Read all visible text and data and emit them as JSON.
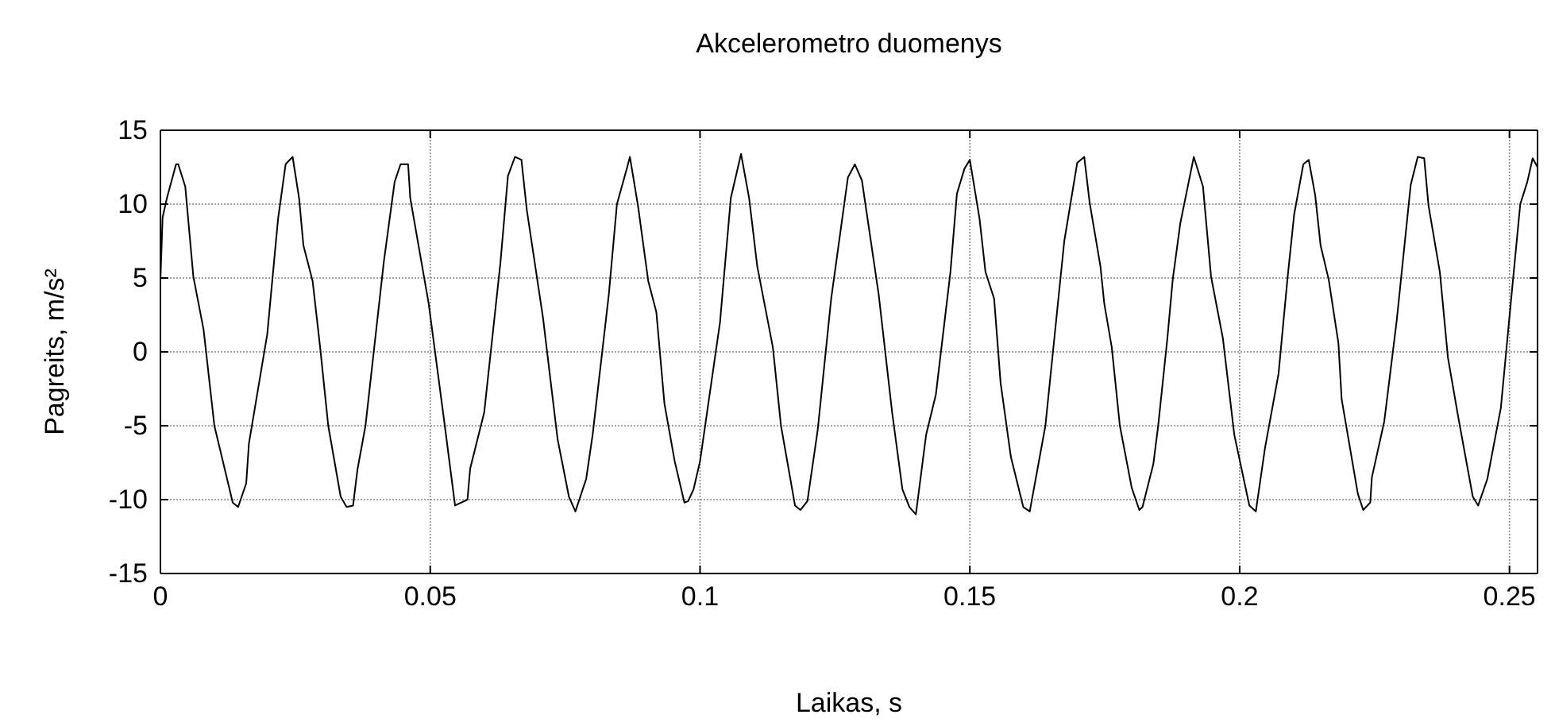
{
  "chart_data": {
    "type": "line",
    "title": "Akcelerometro duomenys",
    "xlabel": "Laikas, s",
    "ylabel": "Pagreits, m/s²",
    "xlim": [
      0,
      0.2552
    ],
    "xticks": [
      0,
      0.05,
      0.1,
      0.15,
      0.2,
      0.25
    ],
    "ylim": [
      -15,
      15
    ],
    "yticks": [
      -15,
      -10,
      -5,
      0,
      5,
      10,
      15
    ],
    "grid": true,
    "marker": "none",
    "line_style": "solid",
    "series": [
      {
        "color": "#000000",
        "x": [
          0,
          0.0004,
          0.0012,
          0.0029,
          0.0033,
          0.0046,
          0.0061,
          0.008,
          0.01,
          0.0134,
          0.0144,
          0.0159,
          0.0164,
          0.0198,
          0.0218,
          0.0232,
          0.0245,
          0.0257,
          0.0265,
          0.0282,
          0.0296,
          0.0311,
          0.0334,
          0.0345,
          0.0357,
          0.0365,
          0.038,
          0.0414,
          0.0434,
          0.0445,
          0.0459,
          0.0463,
          0.0497,
          0.0527,
          0.0546,
          0.0569,
          0.0574,
          0.06,
          0.063,
          0.0644,
          0.0657,
          0.0669,
          0.0679,
          0.0709,
          0.0736,
          0.0757,
          0.0769,
          0.0789,
          0.0801,
          0.0831,
          0.0846,
          0.0865,
          0.087,
          0.0885,
          0.0904,
          0.0919,
          0.0934,
          0.0953,
          0.0971,
          0.0978,
          0.0988,
          0.1,
          0.1037,
          0.1057,
          0.1076,
          0.1091,
          0.1106,
          0.1135,
          0.115,
          0.1176,
          0.1186,
          0.1199,
          0.1218,
          0.1243,
          0.1274,
          0.1287,
          0.13,
          0.1331,
          0.1356,
          0.1375,
          0.1388,
          0.14,
          0.1419,
          0.1437,
          0.1464,
          0.1476,
          0.149,
          0.15,
          0.1518,
          0.1529,
          0.1545,
          0.1557,
          0.1576,
          0.1599,
          0.1611,
          0.164,
          0.1675,
          0.1699,
          0.1712,
          0.1722,
          0.1742,
          0.1749,
          0.1763,
          0.1778,
          0.18,
          0.1814,
          0.182,
          0.184,
          0.1849,
          0.1866,
          0.1876,
          0.189,
          0.1915,
          0.1932,
          0.1947,
          0.1969,
          0.199,
          0.2018,
          0.203,
          0.2047,
          0.2072,
          0.2089,
          0.2101,
          0.2118,
          0.2128,
          0.214,
          0.215,
          0.2165,
          0.2183,
          0.2189,
          0.2219,
          0.2229,
          0.2242,
          0.2245,
          0.2268,
          0.2291,
          0.2317,
          0.233,
          0.2342,
          0.235,
          0.2371,
          0.2386,
          0.2405,
          0.2432,
          0.2442,
          0.2459,
          0.2484,
          0.2504,
          0.252,
          0.2533,
          0.2543,
          0.2552
        ],
        "values": [
          4.8,
          9.1,
          10.4,
          12.7,
          12.7,
          11.2,
          5.1,
          1.5,
          -5.0,
          -10.2,
          -10.5,
          -8.9,
          -6.2,
          1.2,
          9.0,
          12.7,
          13.2,
          10.4,
          7.2,
          4.8,
          0.3,
          -5.0,
          -9.8,
          -10.5,
          -10.4,
          -8.0,
          -5.0,
          6.1,
          11.5,
          12.7,
          12.7,
          10.4,
          3.3,
          -5.0,
          -10.4,
          -10.0,
          -7.9,
          -4.1,
          6.0,
          11.9,
          13.2,
          13.0,
          9.6,
          2.3,
          -5.9,
          -9.8,
          -10.8,
          -8.6,
          -5.6,
          3.9,
          10.0,
          12.5,
          13.2,
          9.9,
          4.8,
          2.7,
          -3.5,
          -7.4,
          -10.2,
          -10.1,
          -9.3,
          -7.4,
          2.0,
          10.4,
          13.4,
          10.4,
          5.8,
          0.3,
          -5.0,
          -10.4,
          -10.7,
          -10.1,
          -5.3,
          3.6,
          11.8,
          12.7,
          11.6,
          3.9,
          -4.1,
          -9.3,
          -10.5,
          -11.0,
          -5.6,
          -2.9,
          5.4,
          10.7,
          12.4,
          13.0,
          9.0,
          5.4,
          3.6,
          -2.1,
          -7.1,
          -10.5,
          -10.8,
          -5.0,
          7.5,
          12.8,
          13.2,
          10.1,
          5.8,
          3.3,
          0.3,
          -5.0,
          -9.2,
          -10.7,
          -10.5,
          -7.6,
          -5.0,
          0.9,
          4.9,
          8.7,
          13.2,
          11.2,
          5.1,
          0.9,
          -5.6,
          -10.4,
          -10.8,
          -6.5,
          -1.5,
          5.1,
          9.3,
          12.7,
          13.0,
          10.6,
          7.2,
          4.9,
          0.6,
          -3.2,
          -9.6,
          -10.7,
          -10.2,
          -8.5,
          -4.7,
          2.1,
          11.3,
          13.2,
          13.1,
          9.9,
          5.4,
          -0.4,
          -4.4,
          -9.8,
          -10.4,
          -8.6,
          -3.8,
          3.9,
          10.0,
          11.5,
          13.1,
          12.5
        ]
      }
    ]
  }
}
